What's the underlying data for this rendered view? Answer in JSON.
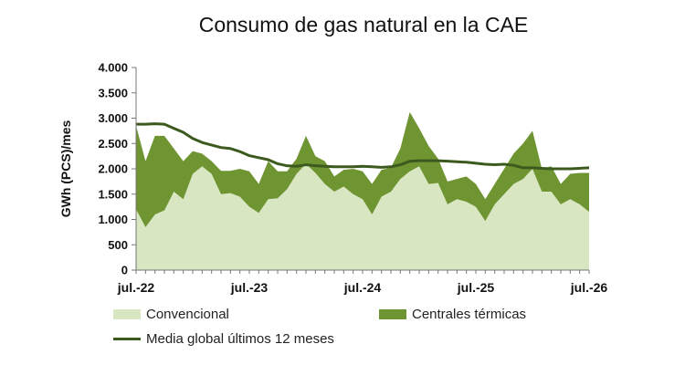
{
  "chart_data": {
    "type": "area",
    "title": "Consumo de gas natural en la CAE",
    "xlabel": "",
    "ylabel": "GWh (PCS)/mes",
    "ylim": [
      0,
      4000
    ],
    "yticks": [
      0,
      500,
      1000,
      1500,
      2000,
      2500,
      3000,
      3500,
      4000
    ],
    "ytick_labels": [
      "0",
      "500",
      "1.000",
      "1.500",
      "2.000",
      "2.500",
      "3.000",
      "3.500",
      "4.000"
    ],
    "xtick_labels": [
      "jul.-22",
      "jul.-23",
      "jul.-24",
      "jul.-25",
      "jul.-26"
    ],
    "xtick_index": [
      0,
      12,
      24,
      36,
      48
    ],
    "x": [
      "2022-07",
      "2022-08",
      "2022-09",
      "2022-10",
      "2022-11",
      "2022-12",
      "2023-01",
      "2023-02",
      "2023-03",
      "2023-04",
      "2023-05",
      "2023-06",
      "2023-07",
      "2023-08",
      "2023-09",
      "2023-10",
      "2023-11",
      "2023-12",
      "2024-01",
      "2024-02",
      "2024-03",
      "2024-04",
      "2024-05",
      "2024-06",
      "2024-07",
      "2024-08",
      "2024-09",
      "2024-10",
      "2024-11",
      "2024-12",
      "2025-01",
      "2025-02",
      "2025-03",
      "2025-04",
      "2025-05",
      "2025-06",
      "2025-07",
      "2025-08",
      "2025-09",
      "2025-10",
      "2025-11",
      "2025-12",
      "2026-01",
      "2026-02",
      "2026-03",
      "2026-04",
      "2026-05",
      "2026-06",
      "2026-07"
    ],
    "grid": false,
    "legend": "bottom",
    "series": [
      {
        "name": "Convencional",
        "kind": "area",
        "color": "#d8e6c2",
        "values": [
          1200,
          850,
          1100,
          1180,
          1550,
          1400,
          1900,
          2050,
          1900,
          1500,
          1520,
          1450,
          1250,
          1130,
          1400,
          1420,
          1600,
          1900,
          2100,
          1920,
          1700,
          1550,
          1650,
          1500,
          1400,
          1100,
          1450,
          1550,
          1800,
          1950,
          2050,
          1700,
          1720,
          1300,
          1400,
          1350,
          1250,
          970,
          1300,
          1500,
          1700,
          1800,
          2000,
          1550,
          1550,
          1300,
          1400,
          1300,
          1150
        ]
      },
      {
        "name": "Centrales térmicas",
        "kind": "area",
        "color": "#6f9432",
        "values": [
          2850,
          2150,
          2650,
          2650,
          2400,
          2150,
          2350,
          2300,
          2150,
          1960,
          1960,
          2000,
          1950,
          1700,
          2150,
          1950,
          1950,
          2200,
          2650,
          2250,
          2150,
          1850,
          1980,
          2000,
          1950,
          1700,
          1980,
          2020,
          2400,
          3120,
          2800,
          2450,
          2200,
          1750,
          1800,
          1850,
          1700,
          1400,
          1700,
          2000,
          2300,
          2500,
          2750,
          2000,
          2050,
          1700,
          1900,
          1920,
          1920
        ]
      },
      {
        "name": "Media global últimos 12 meses",
        "kind": "line",
        "color": "#3c5a1e",
        "values": [
          2880,
          2880,
          2890,
          2880,
          2800,
          2720,
          2600,
          2520,
          2470,
          2420,
          2400,
          2340,
          2260,
          2220,
          2180,
          2100,
          2060,
          2050,
          2080,
          2060,
          2050,
          2040,
          2040,
          2040,
          2050,
          2040,
          2030,
          2040,
          2080,
          2150,
          2160,
          2160,
          2160,
          2150,
          2140,
          2130,
          2110,
          2090,
          2080,
          2090,
          2070,
          2020,
          2020,
          2010,
          2000,
          2000,
          2000,
          2010,
          2020
        ]
      }
    ]
  }
}
